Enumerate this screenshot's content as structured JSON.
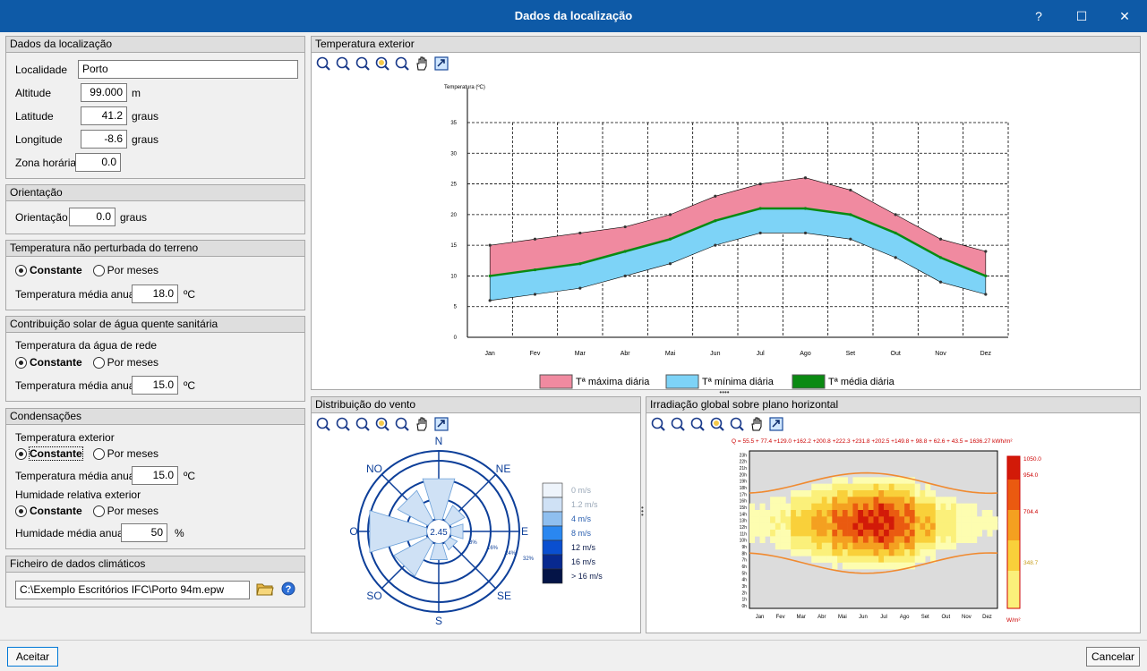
{
  "window": {
    "title": "Dados da localização",
    "help": "?",
    "maximize": "☐",
    "close": "✕"
  },
  "location": {
    "header": "Dados da localização",
    "localidade_label": "Localidade",
    "localidade_value": "Porto",
    "altitude_label": "Altitude",
    "altitude_value": "99.000",
    "altitude_unit": "m",
    "latitude_label": "Latitude",
    "latitude_value": "41.2",
    "latitude_unit": "graus",
    "longitude_label": "Longitude",
    "longitude_value": "-8.6",
    "longitude_unit": "graus",
    "timezone_label": "Zona horária",
    "timezone_value": "0.0"
  },
  "orientation": {
    "header": "Orientação",
    "label": "Orientação",
    "value": "0.0",
    "unit": "graus"
  },
  "ground_temp": {
    "header": "Temperatura não perturbada do terreno",
    "opt_constant": "Constante",
    "opt_months": "Por meses",
    "avg_label": "Temperatura média anual:",
    "avg_value": "18.0",
    "unit": "ºC"
  },
  "solar_water": {
    "header": "Contribuição solar de água quente sanitária",
    "sub_label": "Temperatura da água de rede",
    "opt_constant": "Constante",
    "opt_months": "Por meses",
    "avg_label": "Temperatura média anual:",
    "avg_value": "15.0",
    "unit": "ºC"
  },
  "condensation": {
    "header": "Condensações",
    "temp_label": "Temperatura exterior",
    "opt_constant": "Constante",
    "opt_months": "Por meses",
    "temp_avg_label": "Temperatura média anual:",
    "temp_avg_value": "15.0",
    "temp_unit": "ºC",
    "hum_label": "Humidade relativa exterior",
    "hum_opt_constant": "Constante",
    "hum_opt_months": "Por meses",
    "hum_avg_label": "Humidade média anual:",
    "hum_avg_value": "50",
    "hum_unit": "%"
  },
  "climate_file": {
    "header": "Ficheiro de dados climáticos",
    "path": "C:\\Exemplo Escritórios IFC\\Porto 94m.epw"
  },
  "temp_panel": {
    "header": "Temperatura exterior"
  },
  "wind_panel": {
    "header": "Distribuição do vento"
  },
  "irr_panel": {
    "header": "Irradiação global sobre plano horizontal"
  },
  "buttons": {
    "accept": "Aceitar",
    "cancel": "Cancelar"
  },
  "colors": {
    "max": "#f08aa0",
    "min": "#7dd3f7",
    "mean": "#0a8a12",
    "accent": "#0e5aa7",
    "wind": "#0d3f99"
  },
  "chart_data": [
    {
      "type": "area",
      "title": "Temperatura exterior",
      "ylabel": "Temperatura (ºC)",
      "ylim": [
        0,
        35
      ],
      "yticks": [
        0,
        5,
        10,
        15,
        20,
        25,
        30,
        35
      ],
      "categories": [
        "Jan",
        "Fev",
        "Mar",
        "Abr",
        "Mai",
        "Jun",
        "Jul",
        "Ago",
        "Set",
        "Out",
        "Nov",
        "Dez"
      ],
      "grid": true,
      "legend_position": "bottom",
      "series": [
        {
          "name": "Tª máxima diária",
          "values": [
            15,
            16,
            17,
            18,
            20,
            23,
            25,
            26,
            24,
            20,
            16,
            14
          ]
        },
        {
          "name": "Tª mínima diária",
          "values": [
            6,
            7,
            8,
            10,
            12,
            15,
            17,
            17,
            16,
            13,
            9,
            7
          ]
        },
        {
          "name": "Tª média diária",
          "values": [
            10,
            11,
            12,
            14,
            16,
            19,
            21,
            21,
            20,
            17,
            13,
            10
          ]
        }
      ]
    },
    {
      "type": "wind_rose",
      "title": "Distribuição do vento",
      "center_value": "2.45",
      "directions": [
        "N",
        "NE",
        "E",
        "SE",
        "S",
        "SO",
        "O",
        "NO"
      ],
      "ring_labels": [
        "8%",
        "16%",
        "24%",
        "32%"
      ],
      "frequencies": [
        10,
        4,
        3,
        2,
        4,
        9,
        14,
        8
      ],
      "speed_legend": [
        {
          "label": "0 m/s",
          "color": "#eef4fb"
        },
        {
          "label": "1.2 m/s",
          "color": "#cfe1f5"
        },
        {
          "label": "4 m/s",
          "color": "#8fbfef"
        },
        {
          "label": "8 m/s",
          "color": "#2a87f0"
        },
        {
          "label": "12 m/s",
          "color": "#0a4fd0"
        },
        {
          "label": "16 m/s",
          "color": "#08298f"
        },
        {
          "label": "> 16 m/s",
          "color": "#041447"
        }
      ]
    },
    {
      "type": "heatmap",
      "title": "Irradiação global sobre plano horizontal",
      "summary": "Q =  55.5 + 77.4 +129.0 +162.2 +200.8 +222.3 +231.8 +202.5 +149.8 + 98.8  + 62.6 + 43.5  = 1636.27 kWh/m²",
      "monthly_kwh": [
        55.5,
        77.4,
        129.0,
        162.2,
        200.8,
        222.3,
        231.8,
        202.5,
        149.8,
        98.8,
        62.6,
        43.5
      ],
      "total_kwh": 1636.27,
      "x_labels": [
        "Jan",
        "Fev",
        "Mar",
        "Abr",
        "Mai",
        "Jun",
        "Jul",
        "Ago",
        "Set",
        "Out",
        "Nov",
        "Dez"
      ],
      "y_labels": [
        "23h",
        "22h",
        "21h",
        "20h",
        "19h",
        "18h",
        "17h",
        "16h",
        "15h",
        "14h",
        "13h",
        "12h",
        "11h",
        "10h",
        "9h",
        "8h",
        "7h",
        "6h",
        "5h",
        "4h",
        "3h",
        "2h",
        "1h",
        "0h"
      ],
      "scale_labels": [
        "1050.0",
        "954.0",
        "704.4",
        "348.7"
      ],
      "scale_unit": "W/m²"
    }
  ]
}
